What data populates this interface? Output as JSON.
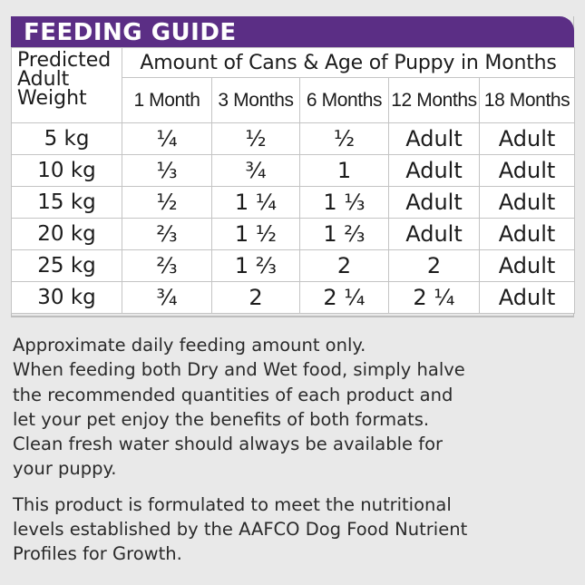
{
  "banner": {
    "title": "FEEDING GUIDE"
  },
  "table": {
    "weight_header": [
      "Predicted",
      "Adult",
      "Weight"
    ],
    "amount_header": "Amount of Cans & Age of Puppy in Months",
    "months": [
      "1 Month",
      "3 Months",
      "6 Months",
      "12 Months",
      "18 Months"
    ],
    "rows": [
      {
        "weight": "5 kg",
        "values": [
          "¼",
          "½",
          "½",
          "Adult",
          "Adult"
        ]
      },
      {
        "weight": "10 kg",
        "values": [
          "⅓",
          "¾",
          "1",
          "Adult",
          "Adult"
        ]
      },
      {
        "weight": "15 kg",
        "values": [
          "½",
          "1 ¼",
          "1 ⅓",
          "Adult",
          "Adult"
        ]
      },
      {
        "weight": "20 kg",
        "values": [
          "⅔",
          "1 ½",
          "1 ⅔",
          "Adult",
          "Adult"
        ]
      },
      {
        "weight": "25 kg",
        "values": [
          "⅔",
          "1 ⅔",
          "2",
          "2",
          "Adult"
        ]
      },
      {
        "weight": "30 kg",
        "values": [
          "¾",
          "2",
          "2 ¼",
          "2 ¼",
          "Adult"
        ]
      }
    ]
  },
  "notes": {
    "lines": [
      "Approximate daily feeding amount only.",
      "When feeding both Dry and Wet food, simply halve",
      "the recommended quantities of each product and",
      "let your pet enjoy the benefits of both formats.",
      "Clean fresh water should always be available for",
      "your puppy."
    ],
    "aafco_lines": [
      "This product is formulated to meet the nutritional",
      "levels established by the AAFCO Dog Food Nutrient",
      "Profiles for Growth."
    ]
  }
}
